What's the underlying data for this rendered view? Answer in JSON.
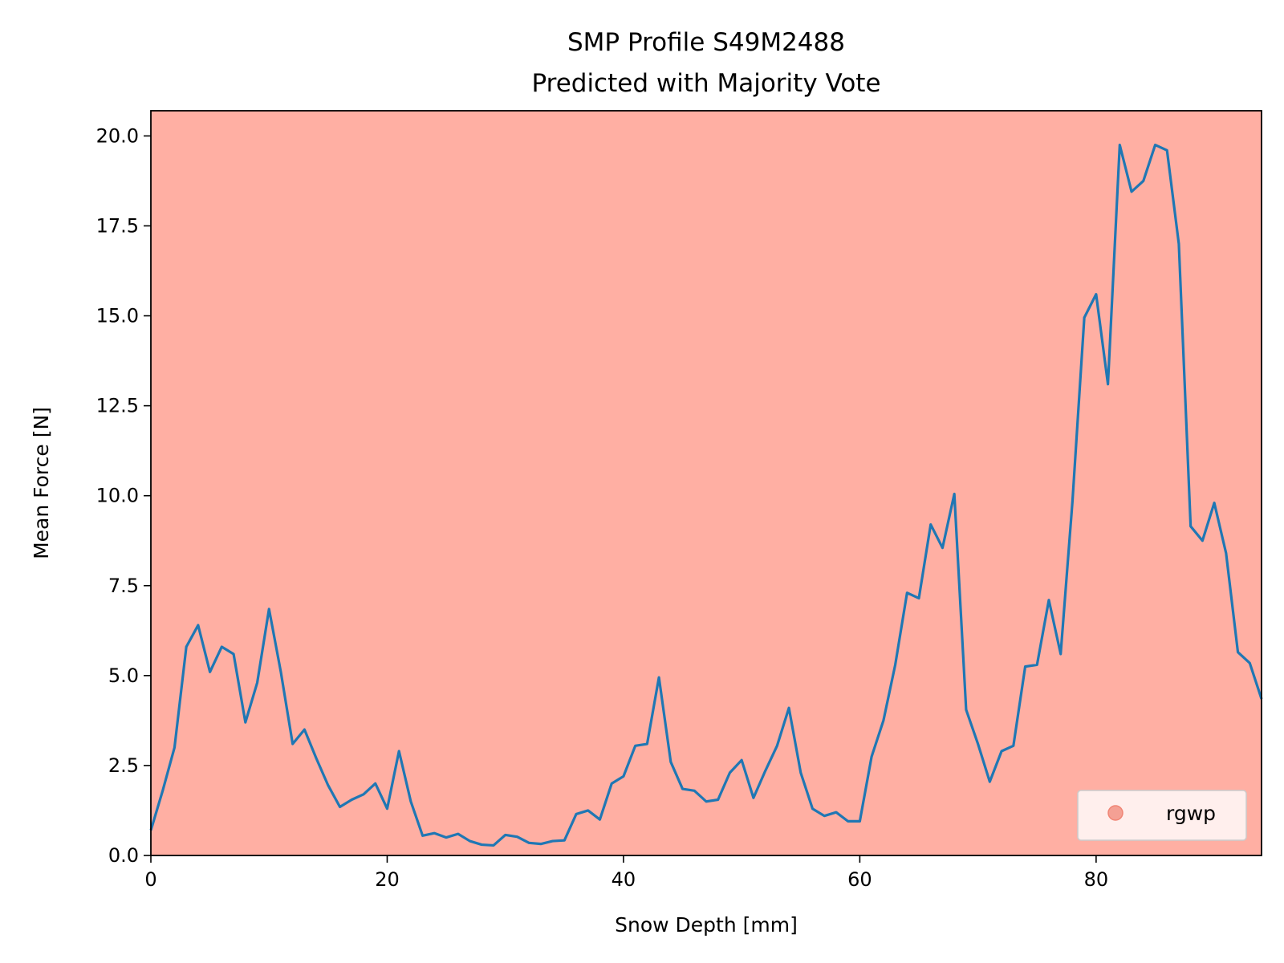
{
  "chart_data": {
    "type": "line",
    "title": "SMP Profile S49M2488",
    "subtitle": "Predicted with Majority Vote",
    "xlabel": "Snow Depth [mm]",
    "ylabel": "Mean Force [N]",
    "xlim": [
      0,
      94
    ],
    "ylim": [
      0,
      20.7
    ],
    "x_ticks": [
      0,
      20,
      40,
      60,
      80
    ],
    "x_tick_labels": [
      "0",
      "20",
      "40",
      "60",
      "80"
    ],
    "y_ticks": [
      0,
      2.5,
      5,
      7.5,
      10,
      12.5,
      15,
      17.5,
      20
    ],
    "y_tick_labels": [
      "0.0",
      "2.5",
      "5.0",
      "7.5",
      "10.0",
      "12.5",
      "15.0",
      "17.5",
      "20.0"
    ],
    "grid": false,
    "background_color": "#ffafa3",
    "line_color": "#1f77b4",
    "legend": {
      "position": "lower-right",
      "entries": [
        {
          "label": "rgwp",
          "marker": "circle",
          "color": "#f08575"
        }
      ]
    },
    "series": [
      {
        "x": [
          0,
          1,
          2,
          3,
          4,
          5,
          6,
          7,
          8,
          9,
          10,
          11,
          12,
          13,
          14,
          15,
          16,
          17,
          18,
          19,
          20,
          21,
          22,
          23,
          24,
          25,
          26,
          27,
          28,
          29,
          30,
          31,
          32,
          33,
          34,
          35,
          36,
          37,
          38,
          39,
          40,
          41,
          42,
          43,
          44,
          45,
          46,
          47,
          48,
          49,
          50,
          51,
          52,
          53,
          54,
          55,
          56,
          57,
          58,
          59,
          60,
          61,
          62,
          63,
          64,
          65,
          66,
          67,
          68,
          69,
          70,
          71,
          72,
          73,
          74,
          75,
          76,
          77,
          78,
          79,
          80,
          81,
          82,
          83,
          84,
          85,
          86,
          87,
          88,
          89,
          90,
          91,
          92,
          93,
          94
        ],
        "values": [
          0.7,
          1.8,
          3.0,
          5.8,
          6.4,
          5.1,
          5.8,
          5.6,
          3.7,
          4.8,
          6.85,
          5.1,
          3.1,
          3.5,
          2.7,
          1.95,
          1.35,
          1.55,
          1.7,
          2.0,
          1.3,
          2.9,
          1.5,
          0.55,
          0.62,
          0.5,
          0.6,
          0.4,
          0.3,
          0.28,
          0.57,
          0.52,
          0.35,
          0.32,
          0.4,
          0.42,
          1.15,
          1.25,
          1.0,
          2.0,
          2.2,
          3.05,
          3.1,
          4.95,
          2.6,
          1.85,
          1.8,
          1.5,
          1.55,
          2.3,
          2.65,
          1.6,
          2.35,
          3.05,
          4.1,
          2.3,
          1.3,
          1.1,
          1.2,
          0.95,
          0.95,
          2.75,
          3.75,
          5.3,
          7.3,
          7.15,
          9.2,
          8.55,
          10.05,
          4.05,
          3.1,
          2.05,
          2.9,
          3.05,
          5.25,
          5.3,
          7.1,
          5.6,
          9.85,
          14.95,
          15.6,
          13.1,
          19.75,
          18.45,
          18.75,
          19.75,
          19.6,
          17.0,
          9.15,
          8.75,
          9.8,
          8.4,
          5.65,
          5.35,
          4.35
        ]
      }
    ]
  }
}
